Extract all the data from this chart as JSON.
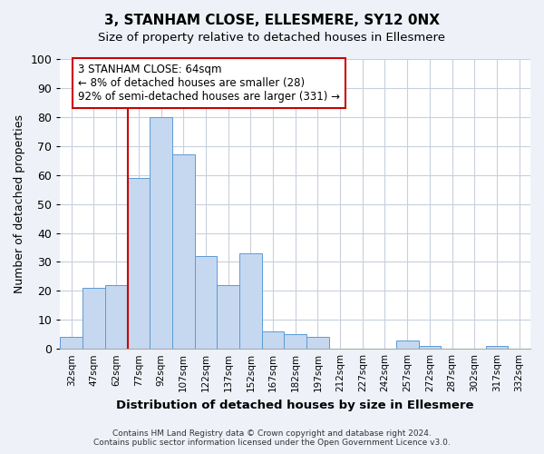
{
  "title": "3, STANHAM CLOSE, ELLESMERE, SY12 0NX",
  "subtitle": "Size of property relative to detached houses in Ellesmere",
  "xlabel": "Distribution of detached houses by size in Ellesmere",
  "ylabel": "Number of detached properties",
  "bin_labels": [
    "32sqm",
    "47sqm",
    "62sqm",
    "77sqm",
    "92sqm",
    "107sqm",
    "122sqm",
    "137sqm",
    "152sqm",
    "167sqm",
    "182sqm",
    "197sqm",
    "212sqm",
    "227sqm",
    "242sqm",
    "257sqm",
    "272sqm",
    "287sqm",
    "302sqm",
    "317sqm",
    "332sqm"
  ],
  "bar_heights": [
    4,
    21,
    22,
    59,
    80,
    67,
    32,
    22,
    33,
    6,
    5,
    4,
    0,
    0,
    0,
    3,
    1,
    0,
    0,
    1,
    0
  ],
  "bar_color": "#c5d8f0",
  "bar_edge_color": "#5b9bd5",
  "ylim": [
    0,
    100
  ],
  "yticks": [
    0,
    10,
    20,
    30,
    40,
    50,
    60,
    70,
    80,
    90,
    100
  ],
  "highlight_color": "#cc0000",
  "annotation_text": "3 STANHAM CLOSE: 64sqm\n← 8% of detached houses are smaller (28)\n92% of semi-detached houses are larger (331) →",
  "annotation_box_color": "#ffffff",
  "annotation_box_edge": "#cc0000",
  "footer_line1": "Contains HM Land Registry data © Crown copyright and database right 2024.",
  "footer_line2": "Contains public sector information licensed under the Open Government Licence v3.0.",
  "bg_color": "#eef2f8",
  "plot_bg_color": "#ffffff",
  "grid_color": "#c8d0dc"
}
